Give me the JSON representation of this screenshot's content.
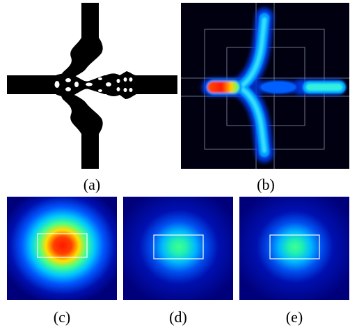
{
  "captions": {
    "a": "(a)",
    "b": "(b)",
    "c": "(c)",
    "d": "(d)",
    "e": "(e)"
  },
  "colors": {
    "structure": "#000000",
    "background": "#ffffff",
    "field_dark": "#00005a",
    "field_guide_lines": "#9aa0b8",
    "mode_box": "#ffffff"
  },
  "mode_intensity": {
    "c": 1.0,
    "d": 0.55,
    "e": 0.52
  }
}
